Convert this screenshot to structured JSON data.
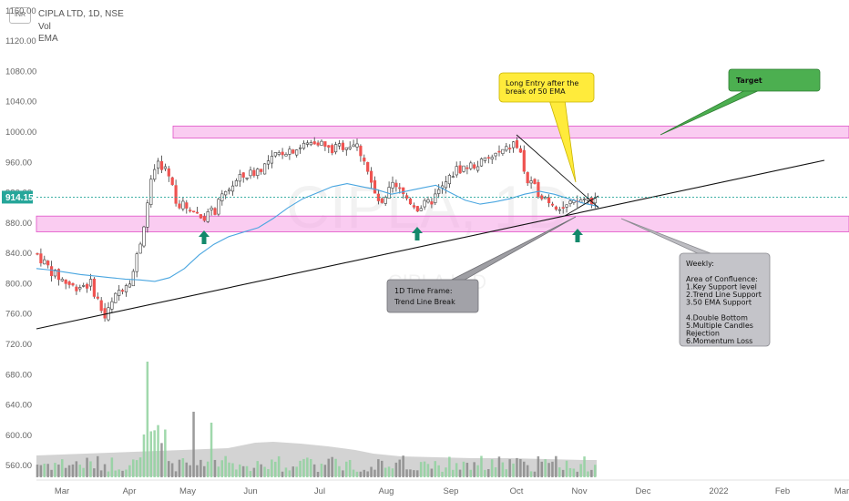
{
  "header": {
    "symbol_line": "CIPLA LTD, 1D, NSE",
    "indicator_1": "Vol",
    "indicator_2": "EMA",
    "currency_badge": "INR"
  },
  "watermark": {
    "ticker": "CIPLA, 1D",
    "name": "CIPLA LTD"
  },
  "price_axis": {
    "ticks": [
      "1160.00",
      "1120.00",
      "1080.00",
      "1040.00",
      "1000.00",
      "960.00",
      "920.00",
      "880.00",
      "840.00",
      "800.00",
      "760.00",
      "720.00",
      "680.00",
      "640.00",
      "600.00",
      "560.00"
    ],
    "tick_values": [
      1160,
      1120,
      1080,
      1040,
      1000,
      960,
      920,
      880,
      840,
      800,
      760,
      720,
      680,
      640,
      600,
      560
    ],
    "current_price_label": "914.15",
    "current_price": 914.15,
    "current_price_color": "#26a69a"
  },
  "time_axis": {
    "labels": [
      "Mar",
      "Apr",
      "May",
      "Jun",
      "Jul",
      "Aug",
      "Sep",
      "Oct",
      "Nov",
      "Dec",
      "2022",
      "Feb",
      "Mar"
    ]
  },
  "colors": {
    "up": "#26a69a",
    "down": "#ef5350",
    "candle_body": "#3b3b3b",
    "ema": "#4aa6e0",
    "zone": "#f5a3e6",
    "zone_border": "#e052c8",
    "vol_up": "#8fd19e",
    "vol_down": "#8a8a8a",
    "arrow": "#13896b"
  },
  "chart_data": {
    "type": "candlestick",
    "title": "CIPLA LTD, 1D, NSE",
    "series": [
      {
        "name": "EMA",
        "type": "line",
        "values": [
          820,
          818,
          815,
          812,
          810,
          808,
          806,
          805,
          803,
          808,
          820,
          838,
          852,
          862,
          868,
          874,
          886,
          900,
          912,
          920,
          928,
          932,
          928,
          924,
          918,
          922,
          926,
          930,
          920,
          910,
          905,
          908,
          912,
          918,
          922,
          918,
          912,
          906,
          902
        ]
      },
      {
        "name": "Vol",
        "type": "bar"
      }
    ],
    "ylim": [
      540,
      1180
    ],
    "support_zone": [
      872,
      888
    ],
    "resistance_zone": [
      992,
      1008
    ],
    "annotations": [
      {
        "title": "Long Entry after the break of 50 EMA"
      },
      {
        "title": "Target"
      },
      {
        "title": "1D Time Frame:",
        "body": "Trend Line Break"
      },
      {
        "title": "Weekly:",
        "body": [
          "Area of Confluence:",
          "1.Key Support level",
          "2.Trend Line Support",
          "3.50 EMA Support",
          "",
          "4.Double Bottom",
          "5.Multiple Candles",
          "Rejection",
          "6.Momentum Loss"
        ]
      }
    ]
  },
  "callouts": {
    "long_entry": [
      "Long Entry after the",
      "break of 50 EMA"
    ],
    "target": "Target",
    "tf_title": "1D Time Frame:",
    "tf_body": "Trend Line Break",
    "weekly": [
      "Weekly:",
      "",
      "Area of Confluence:",
      "1.Key Support level",
      "2.Trend Line Support",
      "3.50 EMA Support",
      "",
      "4.Double Bottom",
      "5.Multiple Candles",
      "Rejection",
      "6.Momentum Loss"
    ]
  }
}
